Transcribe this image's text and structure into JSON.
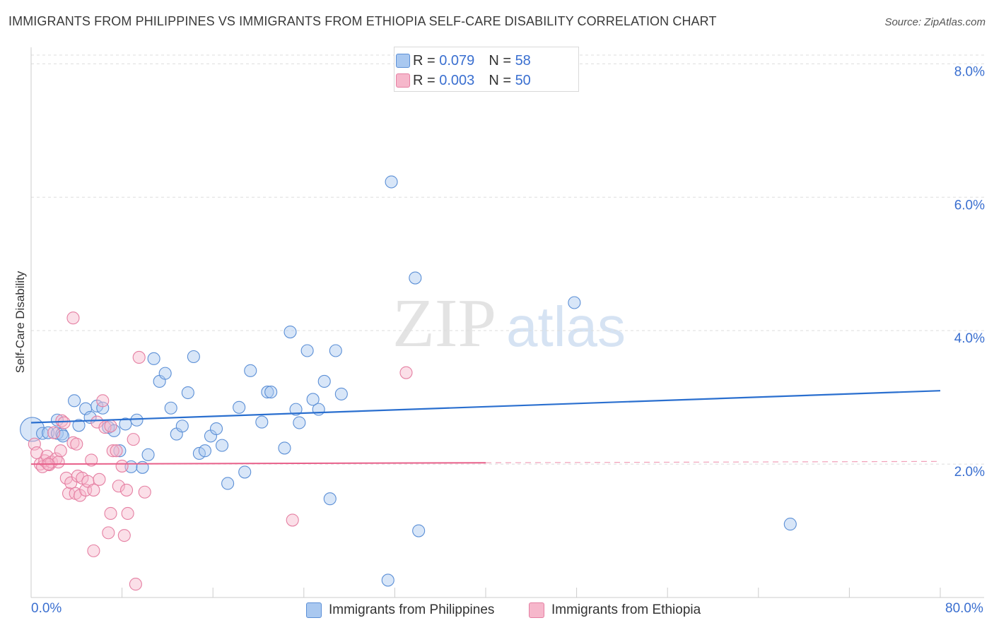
{
  "header": {
    "title": "IMMIGRANTS FROM PHILIPPINES VS IMMIGRANTS FROM ETHIOPIA SELF-CARE DISABILITY CORRELATION CHART",
    "source": "Source: ZipAtlas.com"
  },
  "stats": {
    "rows": [
      {
        "r_label": "R =",
        "r_value": "0.079",
        "n_label": "N =",
        "n_value": "58"
      },
      {
        "r_label": "R =",
        "r_value": "0.003",
        "n_label": "N =",
        "n_value": "50"
      }
    ]
  },
  "legend": {
    "philippines": "Immigrants from Philippines",
    "ethiopia": "Immigrants from Ethiopia"
  },
  "colors": {
    "philippines_fill": "#a9c8f0",
    "philippines_stroke": "#5b8fd6",
    "philippines_line": "#2a6fcf",
    "ethiopia_fill": "#f6b7cb",
    "ethiopia_stroke": "#e57fa2",
    "ethiopia_line": "#e8608a",
    "axis_text": "#3a6fd0",
    "grid": "#dddddd"
  },
  "watermark": {
    "zip": "ZIP",
    "atlas": "atlas"
  },
  "chart_data": {
    "type": "scatter",
    "title": "IMMIGRANTS FROM PHILIPPINES VS IMMIGRANTS FROM ETHIOPIA SELF-CARE DISABILITY CORRELATION CHART",
    "xlabel": "",
    "ylabel": "Self-Care Disability",
    "xlim": [
      0,
      80
    ],
    "ylim": [
      0,
      8.3
    ],
    "x_tick_labels": [
      "0.0%",
      "80.0%"
    ],
    "y_ticks": [
      2,
      4,
      6,
      8
    ],
    "y_tick_labels": [
      "2.0%",
      "4.0%",
      "6.0%",
      "8.0%"
    ],
    "grid": "horizontal dashed",
    "legend_position": "bottom",
    "series": [
      {
        "name": "Immigrants from Philippines",
        "points": [
          [
            0.1,
            2.52
          ],
          [
            1.0,
            2.46
          ],
          [
            1.5,
            2.47
          ],
          [
            2.3,
            2.46
          ],
          [
            2.7,
            2.45
          ],
          [
            2.8,
            2.42
          ],
          [
            2.3,
            2.66
          ],
          [
            3.8,
            2.95
          ],
          [
            4.2,
            2.58
          ],
          [
            4.8,
            2.83
          ],
          [
            5.2,
            2.7
          ],
          [
            5.8,
            2.87
          ],
          [
            6.3,
            2.84
          ],
          [
            6.8,
            2.55
          ],
          [
            7.3,
            2.5
          ],
          [
            7.8,
            2.2
          ],
          [
            8.3,
            2.6
          ],
          [
            8.8,
            1.96
          ],
          [
            9.3,
            2.66
          ],
          [
            9.8,
            1.95
          ],
          [
            10.3,
            2.14
          ],
          [
            10.8,
            3.58
          ],
          [
            11.3,
            3.24
          ],
          [
            11.8,
            3.36
          ],
          [
            12.3,
            2.84
          ],
          [
            12.8,
            2.45
          ],
          [
            13.3,
            2.57
          ],
          [
            13.8,
            3.07
          ],
          [
            14.3,
            3.61
          ],
          [
            14.8,
            2.16
          ],
          [
            15.3,
            2.2
          ],
          [
            15.8,
            2.42
          ],
          [
            16.3,
            2.53
          ],
          [
            16.8,
            2.28
          ],
          [
            17.3,
            1.71
          ],
          [
            18.3,
            2.85
          ],
          [
            18.8,
            1.88
          ],
          [
            19.3,
            3.4
          ],
          [
            20.3,
            2.63
          ],
          [
            20.8,
            3.08
          ],
          [
            21.1,
            3.08
          ],
          [
            22.3,
            2.24
          ],
          [
            22.8,
            3.98
          ],
          [
            23.3,
            2.82
          ],
          [
            23.6,
            2.62
          ],
          [
            24.3,
            3.7
          ],
          [
            24.8,
            2.97
          ],
          [
            25.3,
            2.82
          ],
          [
            25.8,
            3.24
          ],
          [
            26.3,
            1.48
          ],
          [
            26.8,
            3.7
          ],
          [
            27.3,
            3.05
          ],
          [
            31.4,
            0.26
          ],
          [
            31.7,
            6.23
          ],
          [
            33.8,
            4.79
          ],
          [
            34.1,
            1.0
          ],
          [
            47.8,
            4.42
          ],
          [
            66.8,
            1.1
          ]
        ]
      },
      {
        "name": "Immigrants from Ethiopia",
        "points": [
          [
            0.3,
            2.3
          ],
          [
            0.5,
            2.17
          ],
          [
            0.8,
            2.0
          ],
          [
            1.0,
            1.96
          ],
          [
            1.2,
            2.05
          ],
          [
            1.4,
            2.12
          ],
          [
            1.6,
            1.99
          ],
          [
            1.8,
            2.03
          ],
          [
            2.0,
            2.47
          ],
          [
            2.2,
            2.08
          ],
          [
            2.4,
            2.03
          ],
          [
            2.6,
            2.2
          ],
          [
            2.7,
            2.65
          ],
          [
            2.9,
            2.62
          ],
          [
            3.1,
            1.79
          ],
          [
            3.3,
            1.56
          ],
          [
            3.5,
            1.72
          ],
          [
            3.7,
            2.32
          ],
          [
            3.9,
            1.56
          ],
          [
            4.1,
            1.82
          ],
          [
            4.3,
            1.53
          ],
          [
            4.5,
            1.79
          ],
          [
            4.8,
            1.61
          ],
          [
            5.0,
            1.74
          ],
          [
            5.3,
            2.06
          ],
          [
            5.5,
            1.61
          ],
          [
            5.8,
            2.63
          ],
          [
            6.0,
            1.77
          ],
          [
            6.3,
            2.95
          ],
          [
            6.5,
            2.55
          ],
          [
            6.8,
            0.97
          ],
          [
            7.0,
            1.26
          ],
          [
            7.2,
            2.2
          ],
          [
            7.5,
            2.2
          ],
          [
            7.7,
            1.67
          ],
          [
            8.0,
            1.97
          ],
          [
            8.2,
            0.93
          ],
          [
            8.4,
            1.61
          ],
          [
            8.5,
            1.26
          ],
          [
            9.0,
            2.37
          ],
          [
            9.2,
            0.2
          ],
          [
            9.5,
            3.6
          ],
          [
            10.0,
            1.58
          ],
          [
            3.7,
            4.19
          ],
          [
            5.5,
            0.7
          ],
          [
            7.0,
            2.57
          ],
          [
            23.0,
            1.16
          ],
          [
            33.0,
            3.37
          ],
          [
            1.5,
            2.0
          ],
          [
            4.0,
            2.3
          ]
        ]
      }
    ],
    "trendlines": [
      {
        "series": "Immigrants from Philippines",
        "x": [
          0,
          80
        ],
        "y": [
          2.62,
          3.1
        ]
      },
      {
        "series": "Immigrants from Ethiopia",
        "x": [
          0,
          40
        ],
        "y": [
          2.0,
          2.02
        ],
        "dashed_extension_to": 80,
        "dashed_end_y": 2.04
      }
    ]
  }
}
